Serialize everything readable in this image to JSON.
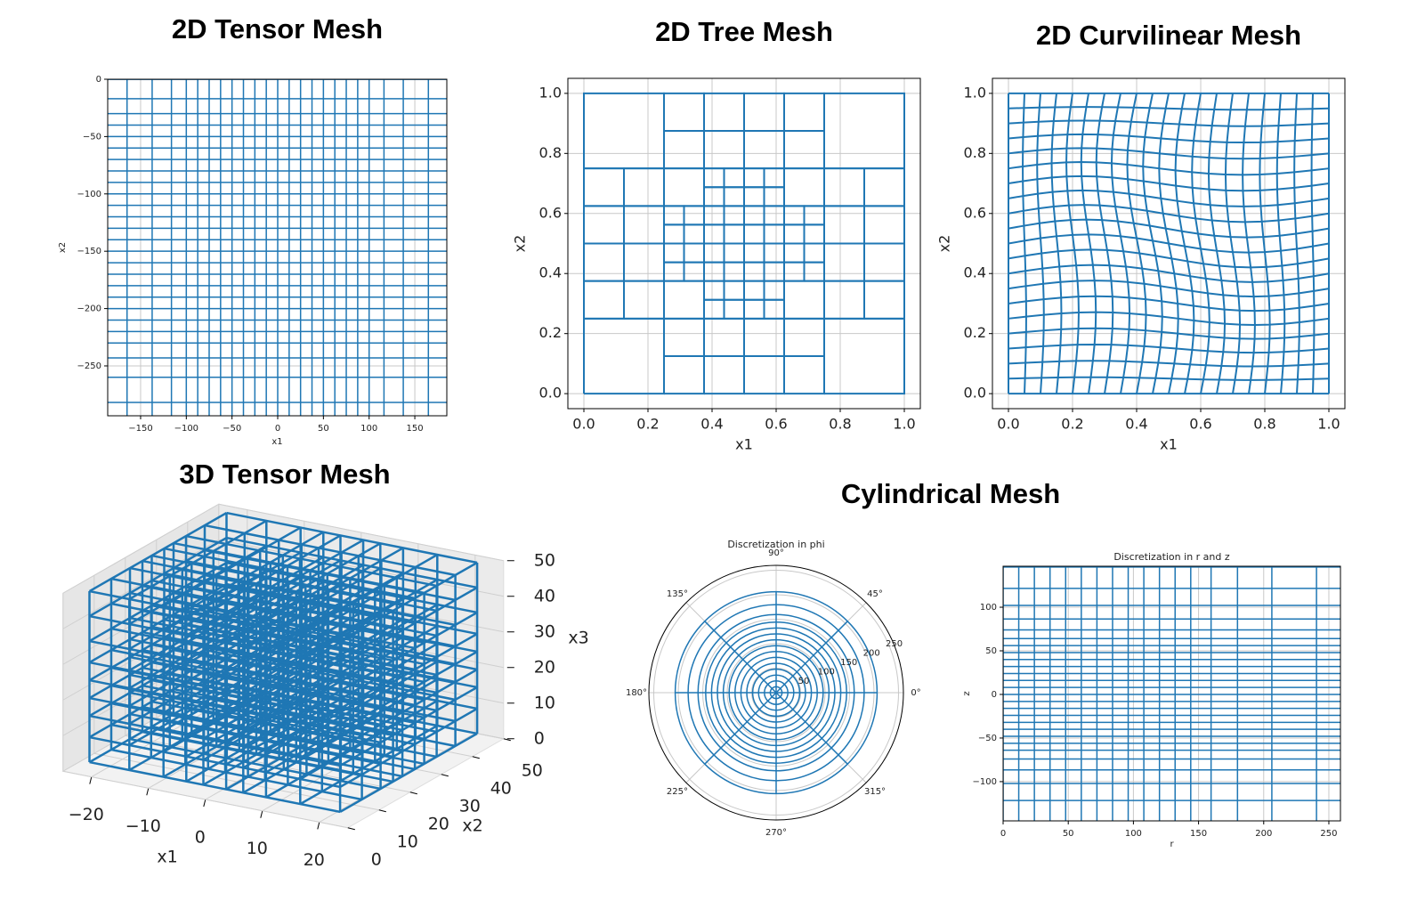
{
  "chart_data": [
    {
      "type": "mesh",
      "title": "2D Tensor Mesh",
      "x_label": "x1",
      "y_label": "x2",
      "xlim": [
        -186,
        185
      ],
      "ylim": [
        -293.5,
        0
      ],
      "xticks": [
        {
          "value": -150,
          "label": "−150"
        },
        {
          "value": -100,
          "label": "−100"
        },
        {
          "value": -50,
          "label": "−50"
        },
        0,
        50,
        100,
        150
      ],
      "yticks": [
        0,
        {
          "value": -50,
          "label": "−50"
        },
        {
          "value": -100,
          "label": "−100"
        },
        {
          "value": -150,
          "label": "−150"
        },
        {
          "value": -200,
          "label": "−200"
        },
        {
          "value": -250,
          "label": "−250"
        }
      ],
      "grid": true,
      "color": "#1f77b4"
    },
    {
      "type": "mesh",
      "title": "2D Tree Mesh",
      "x_label": "x1",
      "y_label": "x2",
      "xlim": [
        -0.05,
        1.05
      ],
      "ylim": [
        -0.05,
        1.05
      ],
      "xticks": [
        {
          "value": 0,
          "label": "0.0"
        },
        0.2,
        0.4,
        0.6,
        0.8,
        {
          "value": 1,
          "label": "1.0"
        }
      ],
      "yticks": [
        {
          "value": 0,
          "label": "0.0"
        },
        0.2,
        0.4,
        0.6,
        0.8,
        {
          "value": 1,
          "label": "1.0"
        }
      ],
      "grid": true,
      "color": "#1f77b4"
    },
    {
      "type": "mesh",
      "title": "2D Curvilinear Mesh",
      "x_label": "x1",
      "y_label": "x2",
      "xlim": [
        -0.05,
        1.05
      ],
      "ylim": [
        -0.05,
        1.05
      ],
      "xticks": [
        {
          "value": 0,
          "label": "0.0"
        },
        0.2,
        0.4,
        0.6,
        0.8,
        {
          "value": 1,
          "label": "1.0"
        }
      ],
      "yticks": [
        {
          "value": 0,
          "label": "0.0"
        },
        0.2,
        0.4,
        0.6,
        0.8,
        {
          "value": 1,
          "label": "1.0"
        }
      ],
      "grid": true,
      "color": "#1f77b4"
    },
    {
      "type": "mesh3d",
      "title": "3D Tensor Mesh",
      "x_label": "x1",
      "y_label": "x2",
      "z_label": "x3",
      "xlim": [
        -25,
        25
      ],
      "ylim": [
        0,
        50
      ],
      "zlim": [
        0,
        50
      ],
      "xticks": [
        {
          "value": -20,
          "label": "−20"
        },
        {
          "value": -10,
          "label": "−10"
        },
        0,
        10,
        20
      ],
      "yticks": [
        0,
        10,
        20,
        30,
        40,
        50
      ],
      "zticks": [
        0,
        10,
        20,
        30,
        40,
        50
      ],
      "grid": true,
      "color": "#1f77b4"
    },
    {
      "type": "polar",
      "title": "Cylindrical Mesh",
      "subtitle": "Discretization in phi",
      "rlim": [
        0,
        260
      ],
      "rticks": [
        50,
        100,
        150,
        200,
        250
      ],
      "theta_ticks": [
        {
          "value": 0,
          "label": "0°"
        },
        {
          "value": 45,
          "label": "45°"
        },
        {
          "value": 90,
          "label": "90°"
        },
        {
          "value": 135,
          "label": "135°"
        },
        {
          "value": 180,
          "label": "180°"
        },
        {
          "value": 225,
          "label": "225°"
        },
        {
          "value": 270,
          "label": "270°"
        },
        {
          "value": 315,
          "label": "315°"
        }
      ],
      "grid": true,
      "color": "#1f77b4"
    },
    {
      "type": "mesh",
      "subtitle": "Discretization in r and z",
      "x_label": "r",
      "y_label": "z",
      "xlim": [
        0,
        258.9
      ],
      "ylim": [
        -145,
        147
      ],
      "xticks": [
        0,
        50,
        100,
        150,
        200,
        250
      ],
      "yticks": [
        {
          "value": -100,
          "label": "−100"
        },
        {
          "value": -50,
          "label": "−50"
        },
        0,
        50,
        100
      ],
      "grid": true,
      "color": "#1f77b4"
    }
  ]
}
